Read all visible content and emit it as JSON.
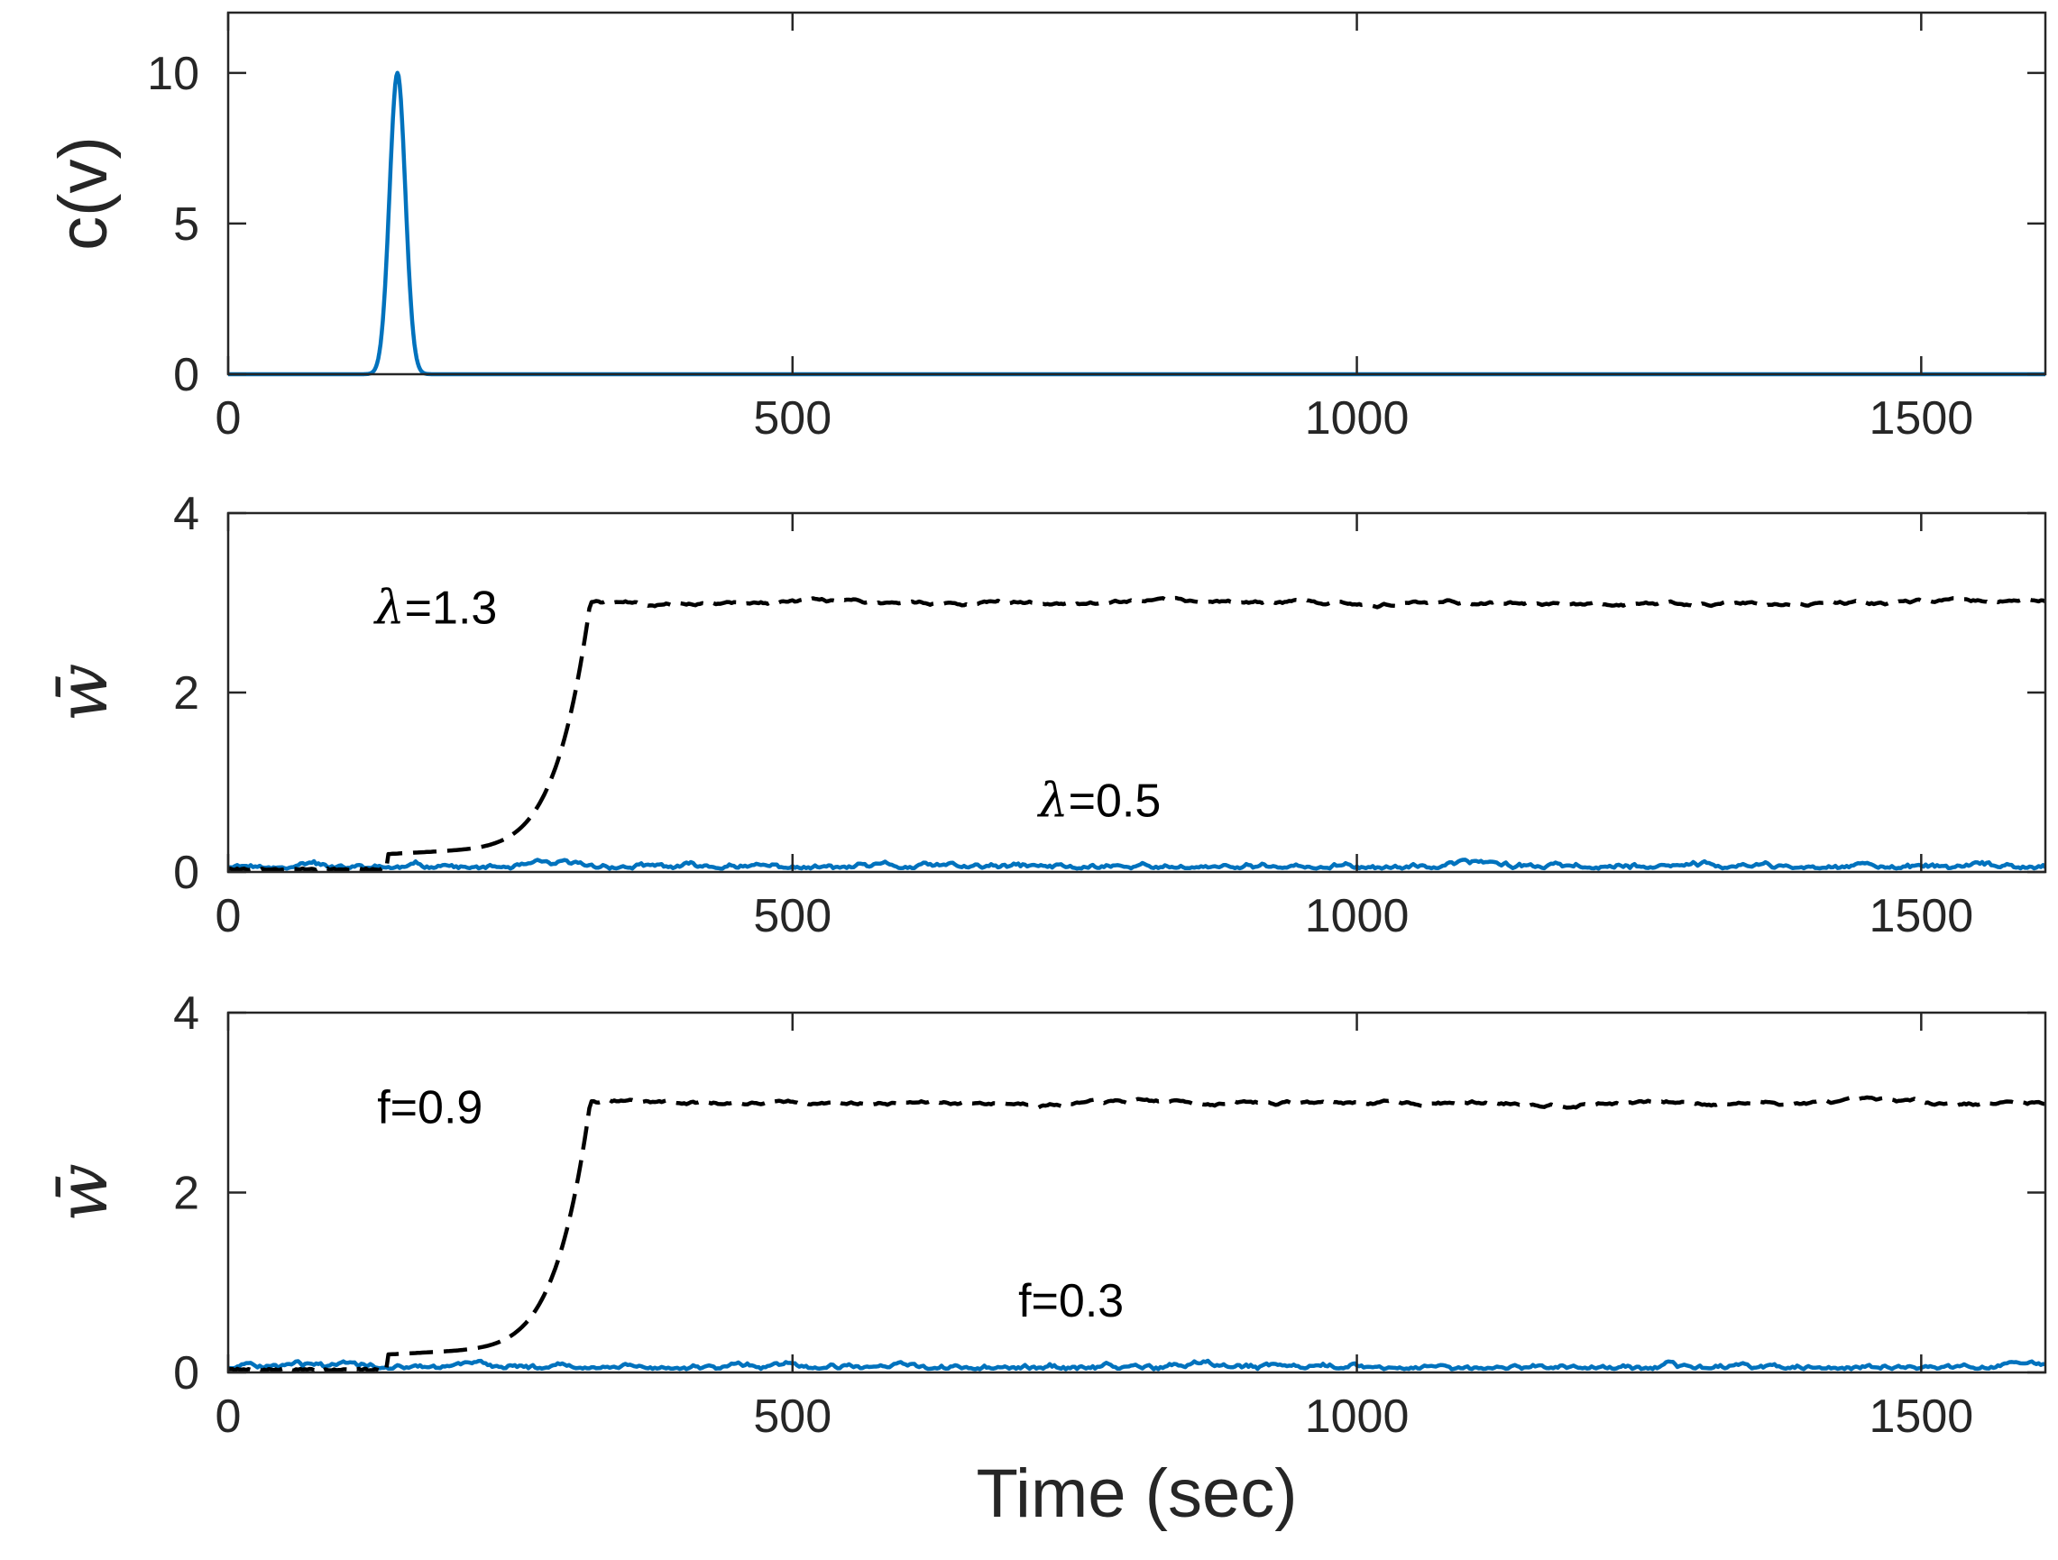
{
  "colors": {
    "blue": "#0072BD",
    "black": "#000000",
    "axis": "#262626"
  },
  "chart_data": [
    {
      "type": "line",
      "ylabel": "c(v)",
      "xlim": [
        0,
        1610
      ],
      "ylim": [
        0,
        12
      ],
      "xticks": [
        0,
        500,
        1000,
        1500
      ],
      "yticks": [
        0,
        5,
        10
      ],
      "grid": false,
      "annotations": [],
      "series": [
        {
          "kind": "gaussian",
          "center": 150,
          "width": 7,
          "peak": 10,
          "style": "solid",
          "color": "#0072BD"
        }
      ]
    },
    {
      "type": "line",
      "ylabel": "w̄",
      "xlim": [
        0,
        1610
      ],
      "ylim": [
        0,
        4
      ],
      "xticks": [
        0,
        500,
        1000,
        1500
      ],
      "yticks": [
        0,
        2,
        4
      ],
      "grid": false,
      "annotations": [
        {
          "symbol": "λ",
          "text": "=1.3",
          "x": 130,
          "y": 2.95
        },
        {
          "symbol": "λ",
          "text": "=0.5",
          "x": 718,
          "y": 0.8
        }
      ],
      "series": [
        {
          "kind": "low",
          "mean": 0.04,
          "noise": 0.03,
          "seed": 11,
          "style": "solid",
          "color": "#0072BD"
        },
        {
          "kind": "high",
          "plateau": 3.0,
          "onset": 142,
          "rise": 322,
          "noise": 0.025,
          "seed": 5,
          "style": "dashed",
          "color": "#000000"
        }
      ]
    },
    {
      "type": "line",
      "ylabel": "w̄",
      "xlabel": "Time  (sec)",
      "xlim": [
        0,
        1610
      ],
      "ylim": [
        0,
        4
      ],
      "xticks": [
        0,
        500,
        1000,
        1500
      ],
      "yticks": [
        0,
        2,
        4
      ],
      "grid": false,
      "annotations": [
        {
          "symbol": "",
          "text": "f=0.9",
          "x": 132,
          "y": 2.95
        },
        {
          "symbol": "",
          "text": "f=0.3",
          "x": 700,
          "y": 0.8
        }
      ],
      "series": [
        {
          "kind": "low",
          "mean": 0.04,
          "noise": 0.03,
          "seed": 23,
          "style": "solid",
          "color": "#0072BD"
        },
        {
          "kind": "high",
          "plateau": 3.0,
          "onset": 142,
          "rise": 322,
          "noise": 0.025,
          "seed": 7,
          "style": "dashed",
          "color": "#000000"
        }
      ]
    }
  ]
}
